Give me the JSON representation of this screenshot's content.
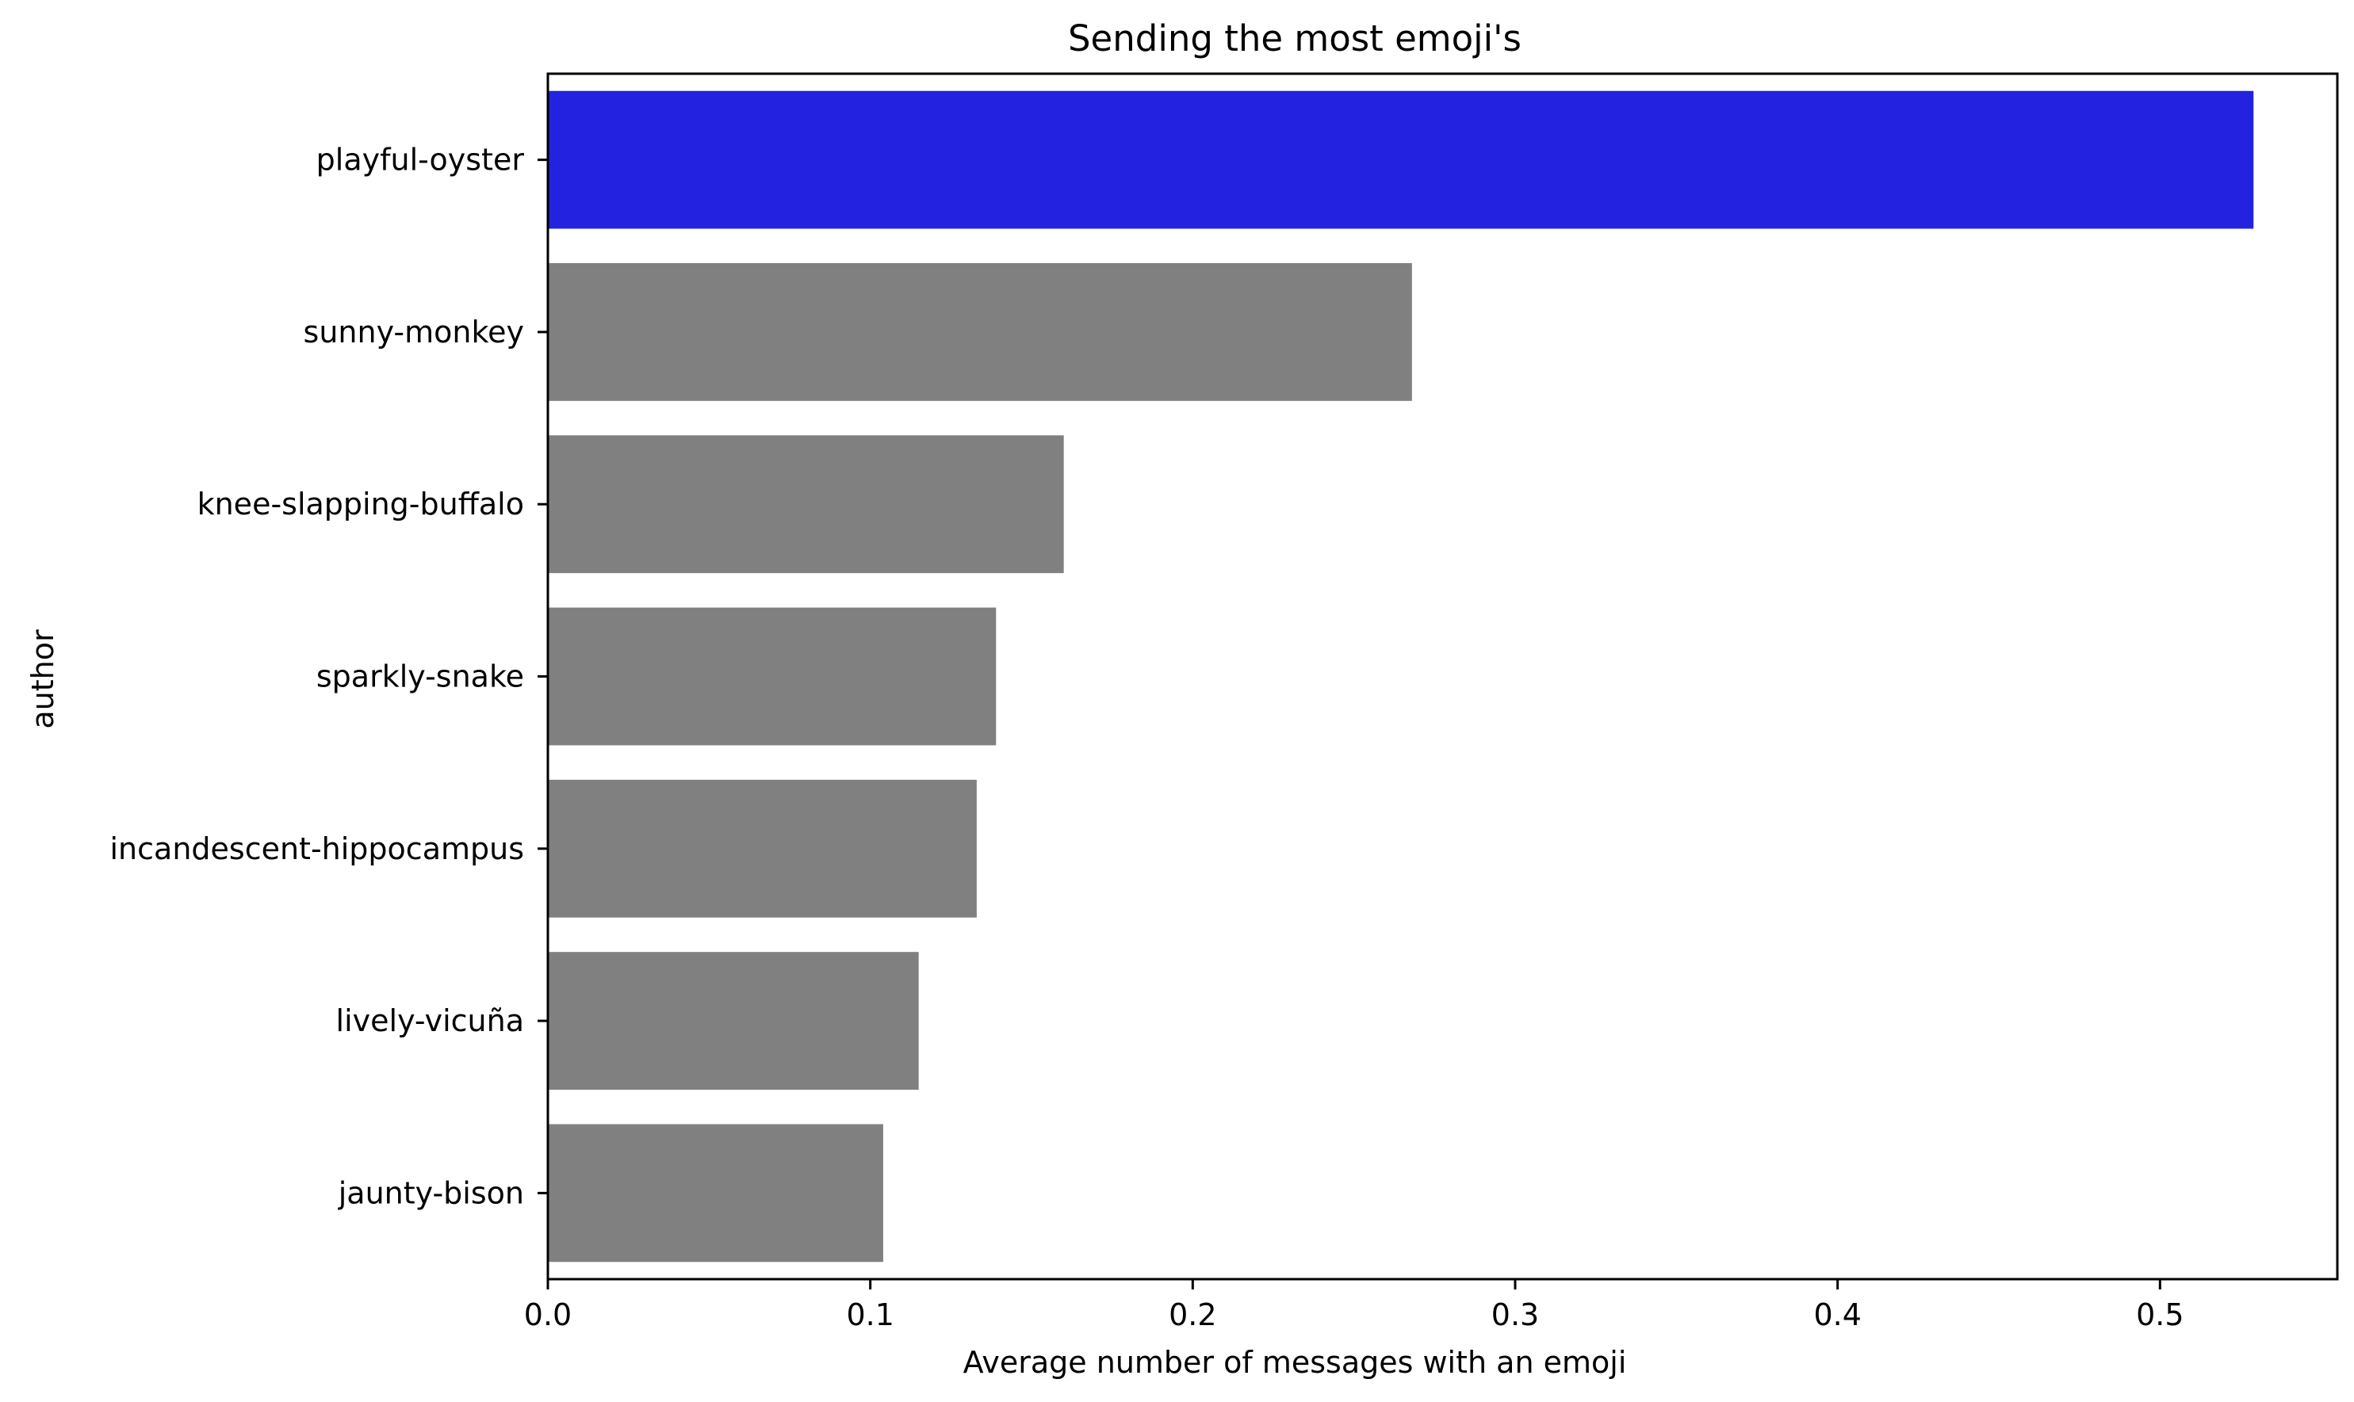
{
  "chart_data": {
    "type": "bar",
    "orientation": "horizontal",
    "title": "Sending the most emoji's",
    "xlabel": "Average number of messages with an emoji",
    "ylabel": "author",
    "categories": [
      "playful-oyster",
      "sunny-monkey",
      "knee-slapping-buffalo",
      "sparkly-snake",
      "incandescent-hippocampus",
      "lively-vicuña",
      "jaunty-bison"
    ],
    "values": [
      0.529,
      0.268,
      0.16,
      0.139,
      0.133,
      0.115,
      0.104
    ],
    "bar_colors": [
      "#2222e0",
      "#808080",
      "#808080",
      "#808080",
      "#808080",
      "#808080",
      "#808080"
    ],
    "xlim": [
      0,
      0.555
    ],
    "xticks": [
      0.0,
      0.1,
      0.2,
      0.3,
      0.4,
      0.5
    ],
    "xtick_labels": [
      "0.0",
      "0.1",
      "0.2",
      "0.3",
      "0.4",
      "0.5"
    ],
    "grid": false,
    "legend": "none"
  }
}
